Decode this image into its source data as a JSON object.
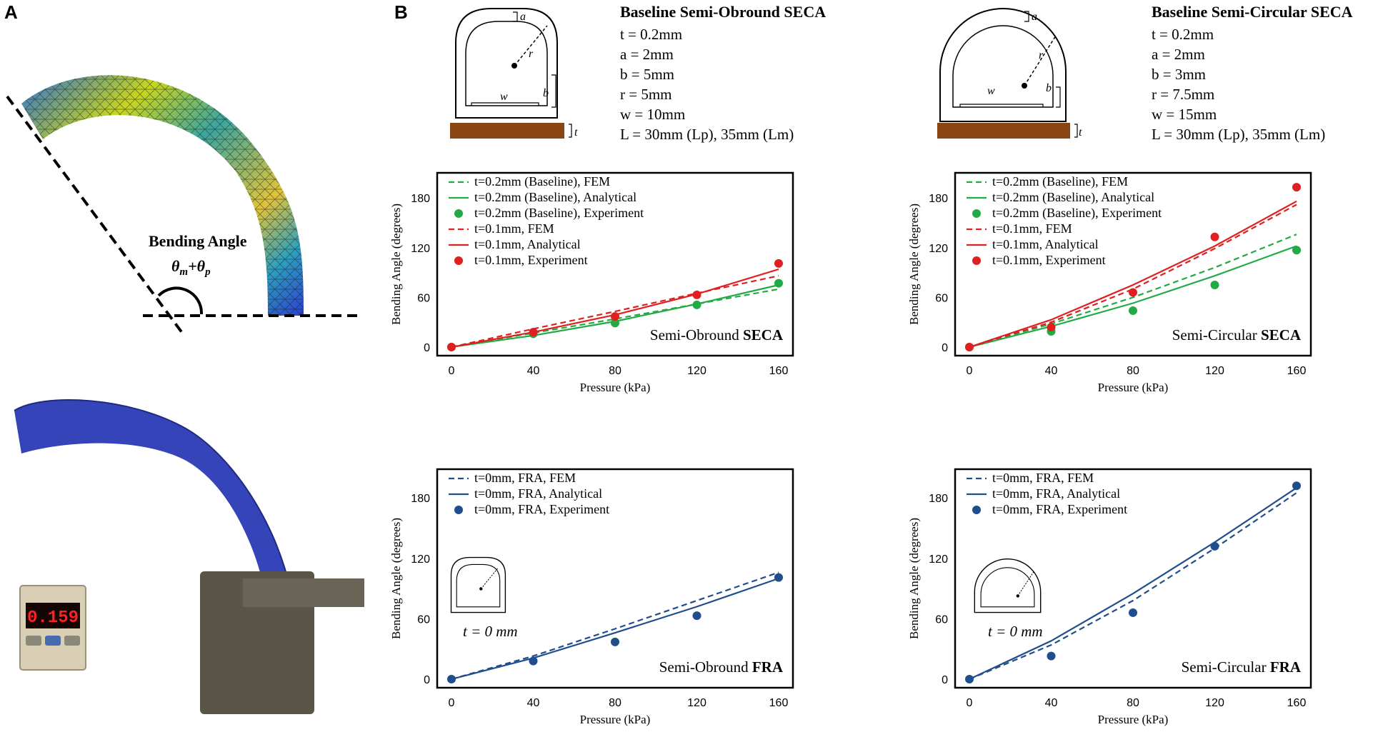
{
  "panels": {
    "a_label": "A",
    "b_label": "B"
  },
  "panel_a": {
    "bending_label": "Bending Angle",
    "theta_m": "θ",
    "theta_m_sub": "m",
    "plus": "+",
    "theta_p": "θ",
    "theta_p_sub": "p",
    "pressure_display": "0.159"
  },
  "schematics": {
    "obround": {
      "title": "Baseline Semi-Obround SECA",
      "params": [
        "t = 0.2mm",
        "a = 2mm",
        "b = 5mm",
        "r = 5mm",
        "w = 10mm",
        "L = 30mm (Lp), 35mm (Lm)"
      ],
      "labels": {
        "a": "a",
        "r": "r",
        "w": "w",
        "b": "b",
        "t": "t"
      }
    },
    "circular": {
      "title": "Baseline Semi-Circular SECA",
      "params": [
        "t = 0.2mm",
        "a = 2mm",
        "b = 3mm",
        "r = 7.5mm",
        "w = 15mm",
        "L = 30mm (Lp), 35mm (Lm)"
      ],
      "labels": {
        "a": "a",
        "r": "r",
        "w": "w",
        "b": "b",
        "t": "t"
      }
    },
    "inset_label": "t = 0 mm"
  },
  "chart_data": [
    {
      "id": "obround_seca",
      "type": "line",
      "title": "Semi-Obround SECA",
      "title_plain": "Semi-Obround ",
      "title_bold": "SECA",
      "xlabel": "Pressure (kPa)",
      "ylabel": "Bending Angle (degrees)",
      "xlim": [
        0,
        160
      ],
      "ylim": [
        0,
        200
      ],
      "xticks": [
        0,
        40,
        80,
        120,
        160
      ],
      "yticks": [
        0,
        60,
        120,
        180
      ],
      "x": [
        0,
        40,
        80,
        120,
        160
      ],
      "series": [
        {
          "name": "t=0.2mm (Baseline), FEM",
          "style": "dashed",
          "color": "#22aa44",
          "values": [
            0,
            17,
            34,
            52,
            70
          ]
        },
        {
          "name": "t=0.2mm (Baseline), Analytical",
          "style": "solid",
          "color": "#22aa44",
          "values": [
            0,
            14,
            31,
            52,
            75
          ]
        },
        {
          "name": "t=0.2mm (Baseline), Experiment",
          "style": "marker",
          "color": "#22aa44",
          "values": [
            0,
            16,
            29,
            51,
            77
          ]
        },
        {
          "name": "t=0.1mm, FEM",
          "style": "dashed",
          "color": "#e02020",
          "values": [
            0,
            22,
            43,
            65,
            86
          ]
        },
        {
          "name": "t=0.1mm, Analytical",
          "style": "solid",
          "color": "#e02020",
          "values": [
            0,
            18,
            39,
            64,
            94
          ]
        },
        {
          "name": "t=0.1mm, Experiment",
          "style": "marker",
          "color": "#e02020",
          "values": [
            0,
            18,
            37,
            63,
            101
          ]
        }
      ]
    },
    {
      "id": "circular_seca",
      "type": "line",
      "title": "Semi-Circular SECA",
      "title_plain": "Semi-Circular ",
      "title_bold": "SECA",
      "xlabel": "Pressure (kPa)",
      "ylabel": "Bending Angle (degrees)",
      "xlim": [
        0,
        160
      ],
      "ylim": [
        0,
        200
      ],
      "xticks": [
        0,
        40,
        80,
        120,
        160
      ],
      "yticks": [
        0,
        60,
        120,
        180
      ],
      "x": [
        0,
        40,
        80,
        120,
        160
      ],
      "series": [
        {
          "name": "t=0.2mm (Baseline), FEM",
          "style": "dashed",
          "color": "#22aa44",
          "values": [
            0,
            28,
            60,
            96,
            136
          ]
        },
        {
          "name": "t=0.2mm (Baseline), Analytical",
          "style": "solid",
          "color": "#22aa44",
          "values": [
            0,
            25,
            53,
            86,
            122
          ]
        },
        {
          "name": "t=0.2mm (Baseline), Experiment",
          "style": "marker",
          "color": "#22aa44",
          "values": [
            0,
            19,
            44,
            75,
            117
          ]
        },
        {
          "name": "t=0.1mm, FEM",
          "style": "dashed",
          "color": "#e02020",
          "values": [
            0,
            30,
            70,
            119,
            172
          ]
        },
        {
          "name": "t=0.1mm, Analytical",
          "style": "solid",
          "color": "#e02020",
          "values": [
            0,
            33,
            75,
            122,
            176
          ]
        },
        {
          "name": "t=0.1mm, Experiment",
          "style": "marker",
          "color": "#e02020",
          "values": [
            0,
            24,
            66,
            133,
            193
          ]
        }
      ]
    },
    {
      "id": "obround_fra",
      "type": "line",
      "title": "Semi-Obround FRA",
      "title_plain": "Semi-Obround ",
      "title_bold": "FRA",
      "xlabel": "Pressure (kPa)",
      "ylabel": "Bending Angle (degrees)",
      "xlim": [
        0,
        160
      ],
      "ylim": [
        0,
        200
      ],
      "xticks": [
        0,
        40,
        80,
        120,
        160
      ],
      "yticks": [
        0,
        60,
        120,
        180
      ],
      "x": [
        0,
        40,
        80,
        120,
        160
      ],
      "series": [
        {
          "name": "t=0mm, FRA, FEM",
          "style": "dashed",
          "color": "#1f4e8c",
          "values": [
            0,
            23,
            50,
            78,
            106
          ]
        },
        {
          "name": "t=0mm, FRA, Analytical",
          "style": "solid",
          "color": "#1f4e8c",
          "values": [
            0,
            21,
            46,
            72,
            100
          ]
        },
        {
          "name": "t=0mm, FRA, Experiment",
          "style": "marker",
          "color": "#1f4e8c",
          "values": [
            0,
            18,
            37,
            63,
            101
          ]
        }
      ]
    },
    {
      "id": "circular_fra",
      "type": "line",
      "title": "Semi-Circular FRA",
      "title_plain": "Semi-Circular ",
      "title_bold": "FRA",
      "xlabel": "Pressure (kPa)",
      "ylabel": "Bending Angle (degrees)",
      "xlim": [
        0,
        160
      ],
      "ylim": [
        0,
        200
      ],
      "xticks": [
        0,
        40,
        80,
        120,
        160
      ],
      "yticks": [
        0,
        60,
        120,
        180
      ],
      "x": [
        0,
        40,
        80,
        120,
        160
      ],
      "series": [
        {
          "name": "t=0mm, FRA, FEM",
          "style": "dashed",
          "color": "#1f4e8c",
          "values": [
            0,
            34,
            78,
            130,
            185
          ]
        },
        {
          "name": "t=0mm, FRA, Analytical",
          "style": "solid",
          "color": "#1f4e8c",
          "values": [
            0,
            38,
            85,
            136,
            190
          ]
        },
        {
          "name": "t=0mm, FRA, Experiment",
          "style": "marker",
          "color": "#1f4e8c",
          "values": [
            0,
            23,
            66,
            132,
            192
          ]
        }
      ]
    }
  ]
}
